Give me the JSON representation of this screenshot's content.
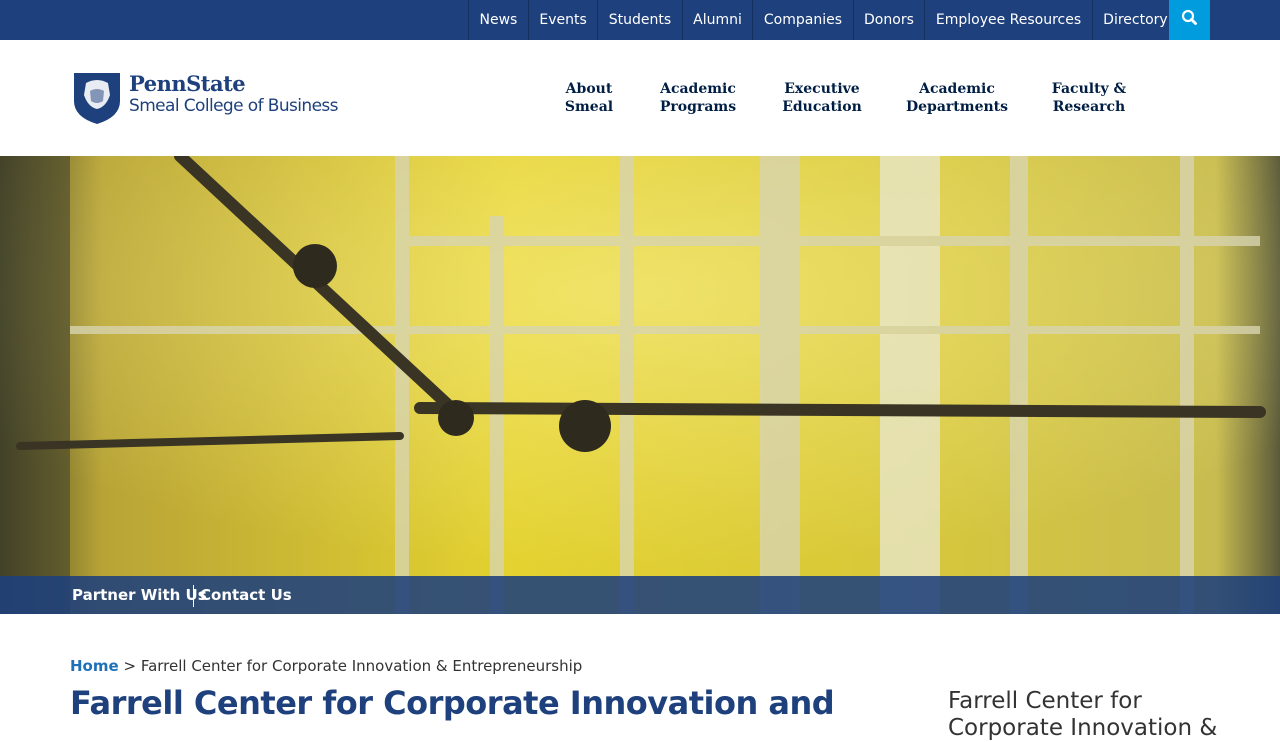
{
  "top_nav": {
    "links": [
      "News",
      "Events",
      "Students",
      "Alumni",
      "Companies",
      "Donors",
      "Employee Resources",
      "Directory"
    ]
  },
  "logo": {
    "wordmark": "PennState",
    "college": "Smeal College of Business"
  },
  "main_nav": {
    "items": [
      [
        "About",
        "Smeal"
      ],
      [
        "Academic",
        "Programs"
      ],
      [
        "Executive",
        "Education"
      ],
      [
        "Academic",
        "Departments"
      ],
      [
        "Faculty &",
        "Research"
      ]
    ]
  },
  "hero": {
    "links": [
      "Partner With Us",
      "Contact Us"
    ]
  },
  "breadcrumb": {
    "home": "Home",
    "separator": ">",
    "current": "Farrell Center for Corporate Innovation & Entrepreneurship"
  },
  "page": {
    "title": "Farrell Center for Corporate Innovation and",
    "sidebar_title": "Farrell Center for Corporate Innovation &"
  }
}
